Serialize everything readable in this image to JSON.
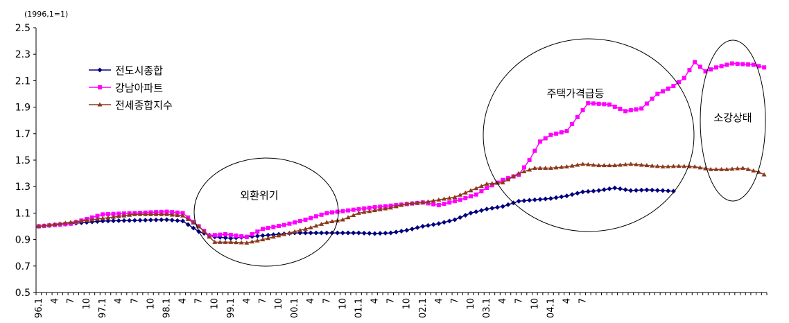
{
  "chart_data": {
    "type": "line",
    "unit_note": "(1996,1=1)",
    "ylim": [
      0.5,
      2.5
    ],
    "yticks": [
      0.5,
      0.7,
      0.9,
      1.1,
      1.3,
      1.5,
      1.7,
      1.9,
      2.1,
      2.3,
      2.5
    ],
    "ytick_labels": [
      "0.5",
      "0.7",
      "0.9",
      "1.1",
      "1.3",
      "1.5",
      "1.7",
      "1.9",
      "2.1",
      "2.3",
      "2.5"
    ],
    "x_tick_labels": [
      "96.1",
      "4",
      "7",
      "10",
      "97.1",
      "4",
      "7",
      "10",
      "98.1",
      "4",
      "7",
      "10",
      "99.1",
      "4",
      "7",
      "10",
      "00.1",
      "4",
      "7",
      "10",
      "01.1",
      "4",
      "7",
      "10",
      "02.1",
      "4",
      "7",
      "10",
      "03.1",
      "4",
      "7",
      "10",
      "04.1",
      "4",
      "7"
    ],
    "legend_position": "top-left",
    "series": [
      {
        "name": "전도시종합",
        "color": "#00007f",
        "marker": "diamond",
        "anchors": [
          [
            0,
            1.0
          ],
          [
            12,
            1.04
          ],
          [
            24,
            1.05
          ],
          [
            27,
            1.04
          ],
          [
            30,
            0.96
          ],
          [
            33,
            0.92
          ],
          [
            36,
            0.91
          ],
          [
            48,
            0.95
          ],
          [
            60,
            0.95
          ],
          [
            63,
            0.945
          ],
          [
            66,
            0.95
          ],
          [
            69,
            0.97
          ],
          [
            72,
            1.0
          ],
          [
            75,
            1.02
          ],
          [
            78,
            1.05
          ],
          [
            81,
            1.1
          ],
          [
            84,
            1.13
          ],
          [
            87,
            1.15
          ],
          [
            90,
            1.19
          ],
          [
            93,
            1.2
          ],
          [
            96,
            1.21
          ],
          [
            99,
            1.23
          ],
          [
            102,
            1.26
          ],
          [
            105,
            1.27
          ],
          [
            108,
            1.29
          ],
          [
            111,
            1.27
          ],
          [
            114,
            1.275
          ],
          [
            117,
            1.27
          ],
          [
            119,
            1.265
          ]
        ]
      },
      {
        "name": "강남아파트",
        "color": "#ff00ff",
        "marker": "square",
        "anchors": [
          [
            0,
            1.0
          ],
          [
            6,
            1.02
          ],
          [
            12,
            1.09
          ],
          [
            18,
            1.1
          ],
          [
            24,
            1.11
          ],
          [
            27,
            1.1
          ],
          [
            30,
            1.0
          ],
          [
            32,
            0.93
          ],
          [
            35,
            0.94
          ],
          [
            39,
            0.92
          ],
          [
            42,
            0.98
          ],
          [
            46,
            1.01
          ],
          [
            50,
            1.05
          ],
          [
            54,
            1.1
          ],
          [
            58,
            1.12
          ],
          [
            62,
            1.14
          ],
          [
            67,
            1.16
          ],
          [
            72,
            1.18
          ],
          [
            75,
            1.16
          ],
          [
            79,
            1.2
          ],
          [
            82,
            1.24
          ],
          [
            84,
            1.29
          ],
          [
            87,
            1.35
          ],
          [
            90,
            1.39
          ],
          [
            92,
            1.5
          ],
          [
            94,
            1.64
          ],
          [
            96,
            1.69
          ],
          [
            99,
            1.72
          ],
          [
            103,
            1.93
          ],
          [
            107,
            1.92
          ],
          [
            110,
            1.87
          ],
          [
            113,
            1.89
          ],
          [
            116,
            2.0
          ],
          [
            119,
            2.06
          ],
          [
            121,
            2.12
          ],
          [
            123,
            2.24
          ],
          [
            125,
            2.17
          ],
          [
            127,
            2.2
          ],
          [
            130,
            2.23
          ],
          [
            134,
            2.22
          ],
          [
            136,
            2.2
          ]
        ]
      },
      {
        "name": "전세종합지수",
        "color": "#8b3a1e",
        "marker": "triangle",
        "anchors": [
          [
            0,
            1.0
          ],
          [
            6,
            1.03
          ],
          [
            12,
            1.06
          ],
          [
            18,
            1.09
          ],
          [
            24,
            1.09
          ],
          [
            27,
            1.08
          ],
          [
            30,
            1.0
          ],
          [
            33,
            0.88
          ],
          [
            36,
            0.88
          ],
          [
            39,
            0.875
          ],
          [
            42,
            0.9
          ],
          [
            45,
            0.93
          ],
          [
            48,
            0.96
          ],
          [
            51,
            0.99
          ],
          [
            54,
            1.03
          ],
          [
            57,
            1.05
          ],
          [
            60,
            1.1
          ],
          [
            63,
            1.12
          ],
          [
            66,
            1.14
          ],
          [
            69,
            1.17
          ],
          [
            72,
            1.18
          ],
          [
            75,
            1.2
          ],
          [
            78,
            1.22
          ],
          [
            81,
            1.27
          ],
          [
            84,
            1.32
          ],
          [
            87,
            1.33
          ],
          [
            90,
            1.4
          ],
          [
            93,
            1.44
          ],
          [
            96,
            1.44
          ],
          [
            99,
            1.45
          ],
          [
            102,
            1.47
          ],
          [
            105,
            1.46
          ],
          [
            108,
            1.46
          ],
          [
            111,
            1.47
          ],
          [
            114,
            1.46
          ],
          [
            117,
            1.45
          ],
          [
            120,
            1.455
          ],
          [
            123,
            1.45
          ],
          [
            126,
            1.43
          ],
          [
            129,
            1.43
          ],
          [
            132,
            1.44
          ],
          [
            135,
            1.41
          ],
          [
            136,
            1.39
          ]
        ]
      }
    ],
    "annotations": [
      {
        "label": "외환위기"
      },
      {
        "label": "주택가격급등"
      },
      {
        "label": "소강상태"
      }
    ]
  }
}
